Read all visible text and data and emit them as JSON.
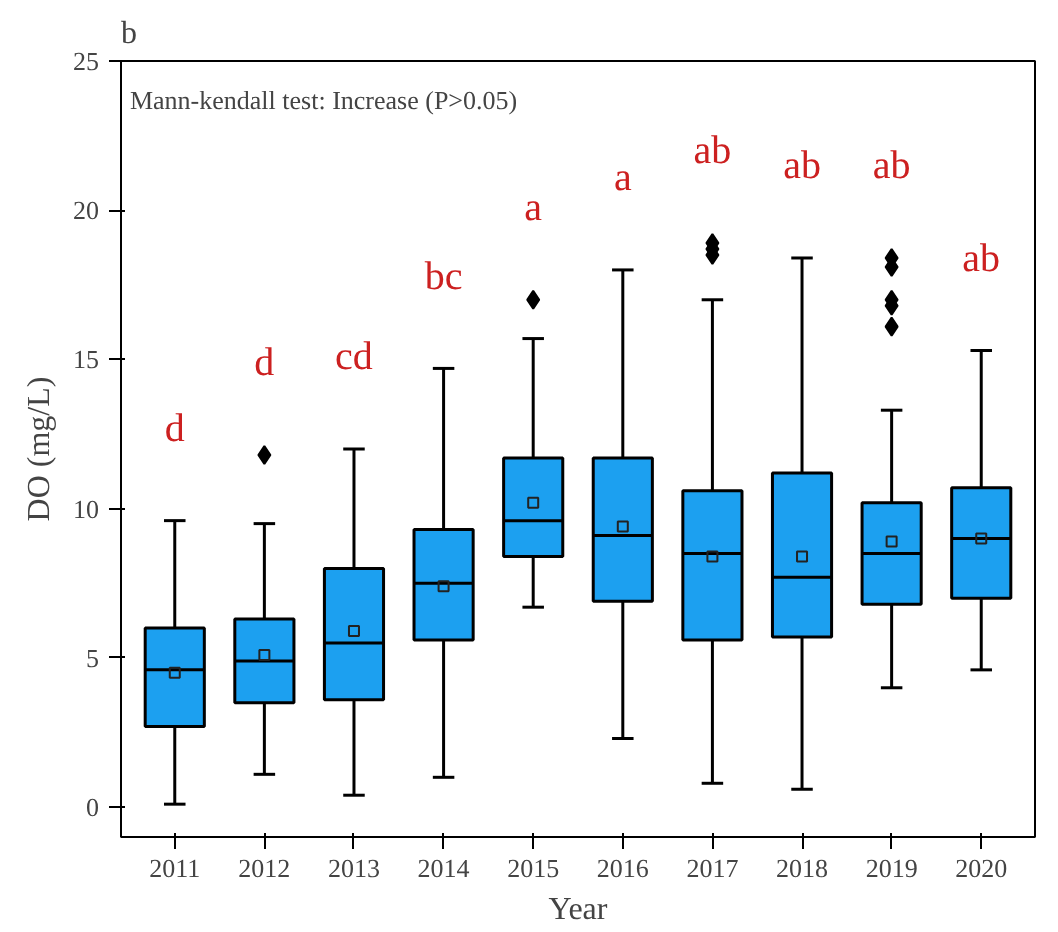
{
  "chart_data": {
    "type": "box",
    "title": "b",
    "xlabel": "Year",
    "ylabel": "DO (mg/L)",
    "categories": [
      "2011",
      "2012",
      "2013",
      "2014",
      "2015",
      "2016",
      "2017",
      "2018",
      "2019",
      "2020"
    ],
    "ylim": [
      -1,
      25
    ],
    "yticks": [
      0,
      5,
      10,
      15,
      20,
      25
    ],
    "grid": false,
    "color": "#1ca0f0",
    "boxes": [
      {
        "low": 0.1,
        "q1": 2.7,
        "median": 4.6,
        "q3": 6.0,
        "high": 9.6,
        "mean": 4.5
      },
      {
        "low": 1.1,
        "q1": 3.5,
        "median": 4.9,
        "q3": 6.3,
        "high": 9.5,
        "mean": 5.1,
        "outliers": [
          11.8
        ]
      },
      {
        "low": 0.4,
        "q1": 3.6,
        "median": 5.5,
        "q3": 8.0,
        "high": 12.0,
        "mean": 5.9
      },
      {
        "low": 1.0,
        "q1": 5.6,
        "median": 7.5,
        "q3": 9.3,
        "high": 14.7,
        "mean": 7.4
      },
      {
        "low": 6.7,
        "q1": 8.4,
        "median": 9.6,
        "q3": 11.7,
        "high": 15.7,
        "mean": 10.2,
        "outliers": [
          17.0
        ]
      },
      {
        "low": 2.3,
        "q1": 6.9,
        "median": 9.1,
        "q3": 11.7,
        "high": 18.0,
        "mean": 9.4
      },
      {
        "low": 0.8,
        "q1": 5.6,
        "median": 8.5,
        "q3": 10.6,
        "high": 17.0,
        "mean": 8.4,
        "outliers": [
          18.5,
          18.7,
          18.9
        ]
      },
      {
        "low": 0.6,
        "q1": 5.7,
        "median": 7.7,
        "q3": 11.2,
        "high": 18.4,
        "mean": 8.4
      },
      {
        "low": 4.0,
        "q1": 6.8,
        "median": 8.5,
        "q3": 10.2,
        "high": 13.3,
        "mean": 8.9,
        "outliers": [
          16.1,
          16.8,
          17.0,
          18.1,
          18.4
        ]
      },
      {
        "low": 4.6,
        "q1": 7.0,
        "median": 9.0,
        "q3": 10.7,
        "high": 15.3,
        "mean": 9.0
      }
    ],
    "annotations": [
      "Mann-kendall test: Increase (P>0.05)",
      "d",
      "d",
      "cd",
      "bc",
      "a",
      "a",
      "ab",
      "ab",
      "ab",
      "ab"
    ]
  }
}
